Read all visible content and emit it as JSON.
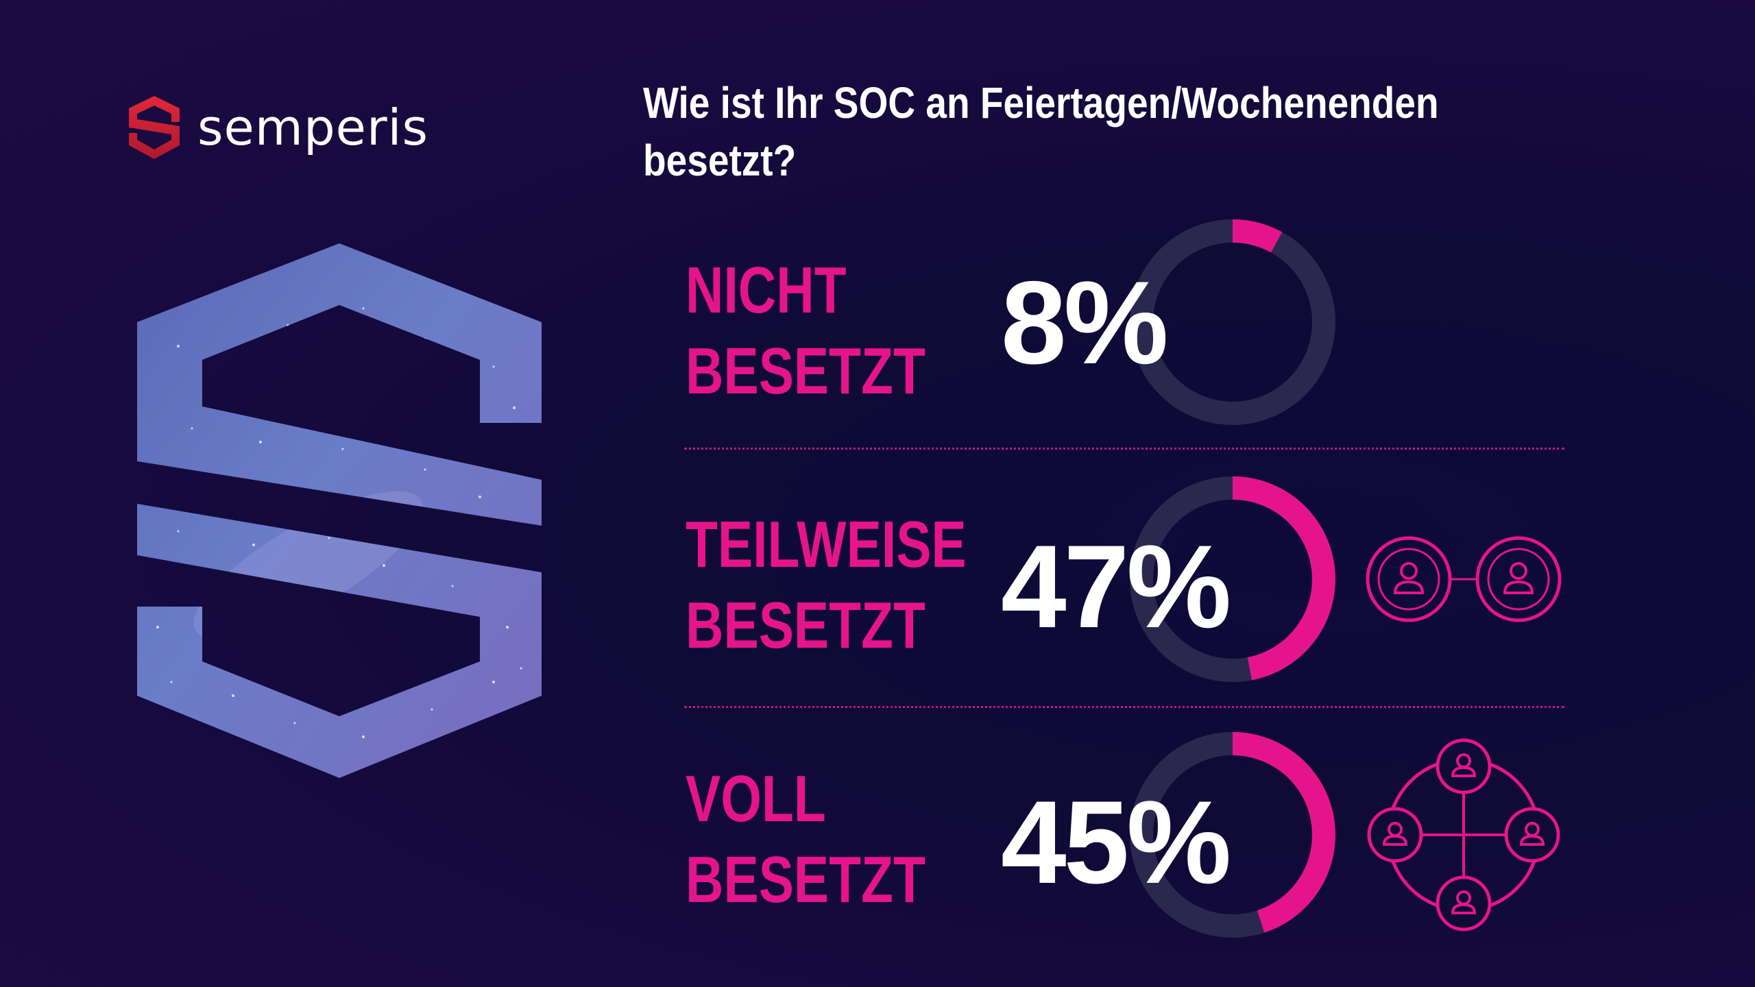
{
  "brand": {
    "name": "semperis"
  },
  "chart_data": {
    "type": "pie",
    "title": "Wie ist Ihr SOC an Feiertagen/Wochenenden besetzt?",
    "categories": [
      "NICHT BESETZT",
      "TEILWEISE BESETZT",
      "VOLL BESETZT"
    ],
    "values": [
      8,
      47,
      45
    ],
    "unit": "%",
    "items": [
      {
        "line1": "NICHT",
        "line2": "BESETZT",
        "value": 8,
        "label": "8%"
      },
      {
        "line1": "TEILWEISE",
        "line2": "BESETZT",
        "value": 47,
        "label": "47%"
      },
      {
        "line1": "VOLL",
        "line2": "BESETZT",
        "value": 45,
        "label": "45%"
      }
    ]
  },
  "colors": {
    "accent": "#e6148a",
    "track": "#2b2850",
    "text": "#ffffff",
    "logo_red": "#d42a3a"
  },
  "icons": [
    "semperis-logo-icon",
    "semperis-s-emblem",
    "two-people-linked-icon",
    "four-people-network-icon"
  ]
}
